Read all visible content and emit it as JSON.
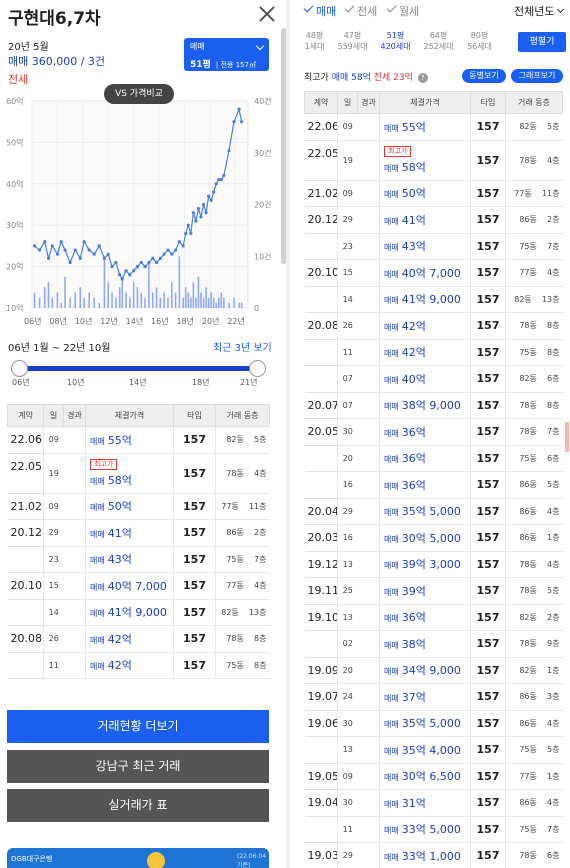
{
  "header": {
    "title": "구현대6,7차",
    "date": "20년 5월",
    "price": "매매 360,000 / 3건",
    "jeonse": "전세"
  },
  "select": {
    "deal_type": "매매",
    "pyeong": "51평",
    "area": "전용 157㎡"
  },
  "vs_button": "VS 가격비교",
  "chart_data": [
    {
      "type": "line",
      "title": "",
      "x_ticks": [
        "06년",
        "08년",
        "10년",
        "12년",
        "14년",
        "16년",
        "18년",
        "20년",
        "22년"
      ],
      "y_left_ticks": [
        "10억",
        "20억",
        "30억",
        "40억",
        "50억",
        "60억"
      ],
      "y_right_ticks": [
        "0",
        "10건",
        "20건",
        "30건",
        "40건"
      ],
      "xlim": [
        2006,
        2023
      ],
      "ylim": [
        10,
        60
      ],
      "y2lim": [
        0,
        40
      ],
      "series": [
        {
          "x": [
            2006.2,
            2006.6,
            2007.0,
            2007.3,
            2007.6,
            2008.0,
            2008.3,
            2008.6,
            2009.0,
            2009.4,
            2009.8,
            2010.1,
            2010.5,
            2010.9,
            2011.3,
            2011.7,
            2012.0,
            2012.3,
            2012.6,
            2012.9,
            2013.1,
            2013.4,
            2013.7,
            2014.0,
            2014.3,
            2014.6,
            2014.9,
            2015.2,
            2015.5,
            2015.8,
            2016.1,
            2016.4,
            2016.7,
            2017.0,
            2017.3,
            2017.6,
            2017.9,
            2018.1,
            2018.3,
            2018.5,
            2018.7,
            2018.9,
            2019.1,
            2019.3,
            2019.5,
            2019.7,
            2019.9,
            2020.1,
            2020.3,
            2020.5,
            2020.7,
            2020.9,
            2021.1,
            2021.5,
            2021.9,
            2022.3,
            2022.5
          ],
          "y": [
            25,
            24,
            26,
            22,
            25,
            23,
            26,
            24,
            21,
            24,
            22,
            26,
            24,
            23,
            25,
            22,
            23,
            20,
            21,
            18,
            17,
            19,
            18,
            19,
            20,
            21,
            20,
            21,
            22,
            21,
            22,
            23,
            24,
            23,
            24,
            26,
            25,
            28,
            30,
            28,
            33,
            31,
            34,
            32,
            35,
            33,
            37,
            36,
            38,
            40,
            41,
            41,
            42,
            48,
            55,
            58,
            55
          ]
        }
      ],
      "volume": [
        3,
        2,
        4,
        5,
        2,
        3,
        1,
        6,
        2,
        3,
        4,
        2,
        3,
        2,
        1,
        10,
        5,
        3,
        2,
        4,
        6,
        3,
        2,
        5,
        4,
        3,
        2,
        9,
        3,
        4,
        2,
        3,
        2,
        5,
        3,
        10,
        2,
        4,
        3,
        2,
        5,
        2,
        6,
        3,
        2,
        4,
        2,
        3,
        2,
        1,
        2,
        3,
        2,
        1,
        2,
        1,
        1
      ]
    }
  ],
  "range": {
    "label": "06년 1월 ~ 22년 10월",
    "recent": "최근 3년 보기",
    "ticks": [
      "06년",
      "10년",
      "14년",
      "18년",
      "21년"
    ]
  },
  "table": {
    "headers": [
      "계약",
      "일",
      "경과",
      "체결가격",
      "타입",
      "거래 동층"
    ],
    "rows": [
      {
        "ym": "22.06",
        "day": "09",
        "high": "",
        "type": "매매",
        "amt": "55억",
        "size": "157",
        "bldg": "82동",
        "floor": "5층"
      },
      {
        "ym": "22.05",
        "day": "19",
        "high": "최고가",
        "type": "매매",
        "amt": "58억",
        "size": "157",
        "bldg": "78동",
        "floor": "4층"
      },
      {
        "ym": "21.02",
        "day": "09",
        "high": "",
        "type": "매매",
        "amt": "50억",
        "size": "157",
        "bldg": "77동",
        "floor": "11층"
      },
      {
        "ym": "20.12",
        "day": "29",
        "high": "",
        "type": "매매",
        "amt": "41억",
        "size": "157",
        "bldg": "86동",
        "floor": "2층"
      },
      {
        "ym": "",
        "day": "23",
        "high": "",
        "type": "매매",
        "amt": "43억",
        "size": "157",
        "bldg": "75동",
        "floor": "7층"
      },
      {
        "ym": "20.10",
        "day": "15",
        "high": "",
        "type": "매매",
        "amt": "40억 7,000",
        "size": "157",
        "bldg": "77동",
        "floor": "4층"
      },
      {
        "ym": "",
        "day": "14",
        "high": "",
        "type": "매매",
        "amt": "41억 9,000",
        "size": "157",
        "bldg": "82동",
        "floor": "13층"
      },
      {
        "ym": "20.08",
        "day": "26",
        "high": "",
        "type": "매매",
        "amt": "42억",
        "size": "157",
        "bldg": "78동",
        "floor": "8층"
      },
      {
        "ym": "",
        "day": "11",
        "high": "",
        "type": "매매",
        "amt": "42억",
        "size": "157",
        "bldg": "75동",
        "floor": "8층"
      }
    ]
  },
  "buttons": {
    "more": "거래현황 더보기",
    "gangnam": "강남구 최근 거래",
    "realprice": "실거래가 표"
  },
  "banner": {
    "text": "DGB대구은행",
    "date": "(22.06.04 기준)"
  },
  "right": {
    "deal_tabs": [
      "매매",
      "전세",
      "월세"
    ],
    "year_select": "전체년도",
    "pyeong_tabs": [
      {
        "p": "48평",
        "h": "1세대"
      },
      {
        "p": "47평",
        "h": "559세대"
      },
      {
        "p": "51평",
        "h": "420세대"
      },
      {
        "p": "64평",
        "h": "252세대"
      },
      {
        "p": "80평",
        "h": "56세대"
      }
    ],
    "pyeong_btn": "평펼기",
    "hi_label": "최고가",
    "hi_value": "매매 58억",
    "jeonse_value": "전세 23억",
    "help": "?",
    "btn_dong": "동별보기",
    "btn_graph": "그래프보기"
  },
  "table2": {
    "headers": [
      "계약",
      "일",
      "경과",
      "체결가격",
      "타입",
      "거래 동층"
    ],
    "rows": [
      {
        "ym": "22.06",
        "day": "09",
        "high": "",
        "type": "매매",
        "amt": "55억",
        "size": "157",
        "bldg": "82동",
        "floor": "5층"
      },
      {
        "ym": "22.05",
        "day": "19",
        "high": "최고가",
        "type": "매매",
        "amt": "58억",
        "size": "157",
        "bldg": "78동",
        "floor": "4층"
      },
      {
        "ym": "21.02",
        "day": "09",
        "high": "",
        "type": "매매",
        "amt": "50억",
        "size": "157",
        "bldg": "77동",
        "floor": "11층"
      },
      {
        "ym": "20.12",
        "day": "29",
        "high": "",
        "type": "매매",
        "amt": "41억",
        "size": "157",
        "bldg": "86동",
        "floor": "2층"
      },
      {
        "ym": "",
        "day": "23",
        "high": "",
        "type": "매매",
        "amt": "43억",
        "size": "157",
        "bldg": "75동",
        "floor": "7층"
      },
      {
        "ym": "20.10",
        "day": "15",
        "high": "",
        "type": "매매",
        "amt": "40억 7,000",
        "size": "157",
        "bldg": "77동",
        "floor": "4층"
      },
      {
        "ym": "",
        "day": "14",
        "high": "",
        "type": "매매",
        "amt": "41억 9,000",
        "size": "157",
        "bldg": "82동",
        "floor": "13층"
      },
      {
        "ym": "20.08",
        "day": "26",
        "high": "",
        "type": "매매",
        "amt": "42억",
        "size": "157",
        "bldg": "78동",
        "floor": "8층"
      },
      {
        "ym": "",
        "day": "11",
        "high": "",
        "type": "매매",
        "amt": "42억",
        "size": "157",
        "bldg": "75동",
        "floor": "8층"
      },
      {
        "ym": "",
        "day": "07",
        "high": "",
        "type": "매매",
        "amt": "40억",
        "size": "157",
        "bldg": "82동",
        "floor": "6층"
      },
      {
        "ym": "20.07",
        "day": "07",
        "high": "",
        "type": "매매",
        "amt": "38억 9,000",
        "size": "157",
        "bldg": "78동",
        "floor": "8층"
      },
      {
        "ym": "20.05",
        "day": "30",
        "high": "",
        "type": "매매",
        "amt": "36억",
        "size": "157",
        "bldg": "78동",
        "floor": "7층"
      },
      {
        "ym": "",
        "day": "20",
        "high": "",
        "type": "매매",
        "amt": "36억",
        "size": "157",
        "bldg": "75동",
        "floor": "6층"
      },
      {
        "ym": "",
        "day": "16",
        "high": "",
        "type": "매매",
        "amt": "36억",
        "size": "157",
        "bldg": "86동",
        "floor": "5층"
      },
      {
        "ym": "20.04",
        "day": "29",
        "high": "",
        "type": "매매",
        "amt": "35억 5,000",
        "size": "157",
        "bldg": "86동",
        "floor": "4층"
      },
      {
        "ym": "20.03",
        "day": "16",
        "high": "",
        "type": "매매",
        "amt": "30억 5,000",
        "size": "157",
        "bldg": "86동",
        "floor": "1층"
      },
      {
        "ym": "19.12",
        "day": "13",
        "high": "",
        "type": "매매",
        "amt": "39억 3,000",
        "size": "157",
        "bldg": "78동",
        "floor": "4층"
      },
      {
        "ym": "19.11",
        "day": "25",
        "high": "",
        "type": "매매",
        "amt": "39억",
        "size": "157",
        "bldg": "78동",
        "floor": "5층"
      },
      {
        "ym": "19.10",
        "day": "13",
        "high": "",
        "type": "매매",
        "amt": "36억",
        "size": "157",
        "bldg": "82동",
        "floor": "2층"
      },
      {
        "ym": "",
        "day": "02",
        "high": "",
        "type": "매매",
        "amt": "38억",
        "size": "157",
        "bldg": "78동",
        "floor": "9층"
      },
      {
        "ym": "19.09",
        "day": "20",
        "high": "",
        "type": "매매",
        "amt": "34억 9,000",
        "size": "157",
        "bldg": "82동",
        "floor": "1층"
      },
      {
        "ym": "19.07",
        "day": "24",
        "high": "",
        "type": "매매",
        "amt": "37억",
        "size": "157",
        "bldg": "86동",
        "floor": "3층"
      },
      {
        "ym": "19.06",
        "day": "30",
        "high": "",
        "type": "매매",
        "amt": "35억 5,000",
        "size": "157",
        "bldg": "86동",
        "floor": "4층"
      },
      {
        "ym": "",
        "day": "13",
        "high": "",
        "type": "매매",
        "amt": "35억 4,000",
        "size": "157",
        "bldg": "75동",
        "floor": "5층"
      },
      {
        "ym": "19.05",
        "day": "09",
        "high": "",
        "type": "매매",
        "amt": "30억 6,500",
        "size": "157",
        "bldg": "77동",
        "floor": "1층"
      },
      {
        "ym": "19.04",
        "day": "30",
        "high": "",
        "type": "매매",
        "amt": "31억",
        "size": "157",
        "bldg": "86동",
        "floor": "4층"
      },
      {
        "ym": "",
        "day": "11",
        "high": "",
        "type": "매매",
        "amt": "33억 5,000",
        "size": "157",
        "bldg": "75동",
        "floor": "7층"
      },
      {
        "ym": "19.03",
        "day": "29",
        "high": "",
        "type": "매매",
        "amt": "33억 1,000",
        "size": "157",
        "bldg": "78동",
        "floor": "6층"
      }
    ]
  },
  "colors": {
    "accent": "#1a5ff0",
    "price": "#1a3ec8",
    "red": "#e53935",
    "chart_line": "#4a7fe0",
    "volume": "#8fa8ff"
  }
}
